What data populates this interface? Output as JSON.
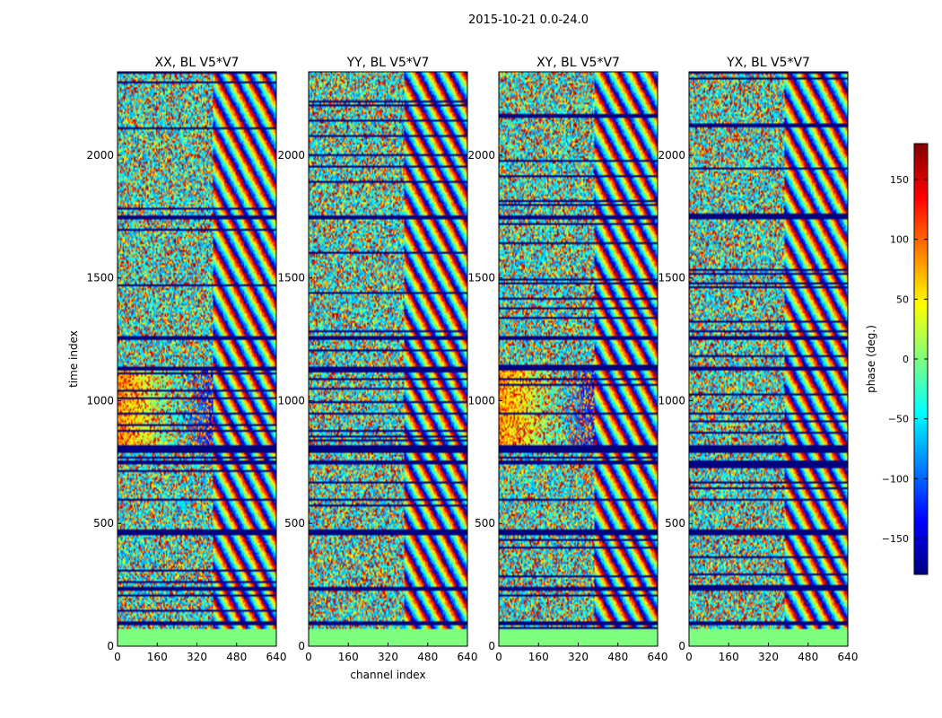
{
  "figure": {
    "suptitle": "2015-10-21 0.0-24.0"
  },
  "chart_data": [
    {
      "type": "heatmap",
      "title": "XX, BL V5*V7",
      "xlabel": "",
      "ylabel": "time index",
      "xlim": [
        0,
        640
      ],
      "ylim": [
        0,
        2340
      ],
      "xticks": [
        "0",
        "160",
        "320",
        "480",
        "640"
      ],
      "yticks": [
        "0",
        "500",
        "1000",
        "1500",
        "2000"
      ],
      "xtick_values": [
        0,
        160,
        320,
        480,
        640
      ],
      "ytick_values": [
        0,
        500,
        1000,
        1500,
        2000
      ],
      "colorscale": "jet",
      "value_range": [
        -180,
        180
      ]
    },
    {
      "type": "heatmap",
      "title": "YY, BL V5*V7",
      "xlabel": "channel index",
      "ylabel": "",
      "xlim": [
        0,
        640
      ],
      "ylim": [
        0,
        2340
      ],
      "xticks": [
        "0",
        "160",
        "320",
        "480",
        "640"
      ],
      "yticks": [
        "0",
        "500",
        "1000",
        "1500",
        "2000"
      ],
      "xtick_values": [
        0,
        160,
        320,
        480,
        640
      ],
      "ytick_values": [
        0,
        500,
        1000,
        1500,
        2000
      ],
      "colorscale": "jet",
      "value_range": [
        -180,
        180
      ]
    },
    {
      "type": "heatmap",
      "title": "XY, BL V5*V7",
      "xlabel": "",
      "ylabel": "",
      "xlim": [
        0,
        640
      ],
      "ylim": [
        0,
        2340
      ],
      "xticks": [
        "0",
        "160",
        "320",
        "480",
        "640"
      ],
      "yticks": [
        "0",
        "500",
        "1000",
        "1500",
        "2000"
      ],
      "xtick_values": [
        0,
        160,
        320,
        480,
        640
      ],
      "ytick_values": [
        0,
        500,
        1000,
        1500,
        2000
      ],
      "colorscale": "jet",
      "value_range": [
        -180,
        180
      ]
    },
    {
      "type": "heatmap",
      "title": "YX, BL V5*V7",
      "xlabel": "",
      "ylabel": "",
      "xlim": [
        0,
        640
      ],
      "ylim": [
        0,
        2340
      ],
      "xticks": [
        "0",
        "160",
        "320",
        "480",
        "640"
      ],
      "yticks": [
        "0",
        "500",
        "1000",
        "1500",
        "2000"
      ],
      "xtick_values": [
        0,
        160,
        320,
        480,
        640
      ],
      "ytick_values": [
        0,
        500,
        1000,
        1500,
        2000
      ],
      "colorscale": "jet",
      "value_range": [
        -180,
        180
      ]
    }
  ],
  "colorbar": {
    "label": "phase (deg.)",
    "range": [
      -180,
      180
    ],
    "ticks": [
      "150",
      "100",
      "50",
      "0",
      "−50",
      "−100",
      "−150"
    ],
    "tick_values": [
      150,
      100,
      50,
      0,
      -50,
      -100,
      -150
    ]
  },
  "colors": {
    "background": "#ffffff",
    "axis": "#000000",
    "flat_band": "#7fff7f",
    "flag_row": "#000080"
  }
}
